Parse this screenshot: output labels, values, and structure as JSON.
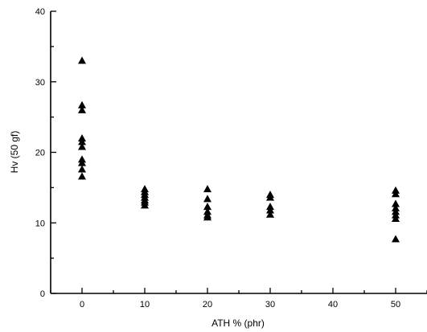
{
  "chart_data": {
    "type": "scatter",
    "title": "",
    "xlabel": "ATH % (phr)",
    "ylabel": "Hv (50 gf)",
    "xlim": [
      -5,
      55
    ],
    "ylim": [
      0,
      40
    ],
    "x_ticks": [
      0,
      10,
      20,
      30,
      40,
      50
    ],
    "y_ticks": [
      0,
      10,
      20,
      30,
      40
    ],
    "x_tick_labels": [
      "0",
      "10",
      "20",
      "30",
      "40",
      "50"
    ],
    "y_tick_labels": [
      "0",
      "10",
      "20",
      "30",
      "40"
    ],
    "marker": "triangle-up",
    "grid": false,
    "legend": "none",
    "points": [
      {
        "x": 0,
        "y": 33.0
      },
      {
        "x": 0,
        "y": 26.7
      },
      {
        "x": 0,
        "y": 26.0
      },
      {
        "x": 0,
        "y": 22.0
      },
      {
        "x": 0,
        "y": 21.5
      },
      {
        "x": 0,
        "y": 20.8
      },
      {
        "x": 0,
        "y": 19.0
      },
      {
        "x": 0,
        "y": 18.5
      },
      {
        "x": 0,
        "y": 17.6
      },
      {
        "x": 0,
        "y": 16.6
      },
      {
        "x": 10,
        "y": 14.8
      },
      {
        "x": 10,
        "y": 14.4
      },
      {
        "x": 10,
        "y": 14.0
      },
      {
        "x": 10,
        "y": 13.6
      },
      {
        "x": 10,
        "y": 13.2
      },
      {
        "x": 10,
        "y": 12.9
      },
      {
        "x": 10,
        "y": 12.5
      },
      {
        "x": 20,
        "y": 14.8
      },
      {
        "x": 20,
        "y": 13.4
      },
      {
        "x": 20,
        "y": 12.3
      },
      {
        "x": 20,
        "y": 11.6
      },
      {
        "x": 20,
        "y": 11.1
      },
      {
        "x": 20,
        "y": 10.8
      },
      {
        "x": 30,
        "y": 14.0
      },
      {
        "x": 30,
        "y": 13.6
      },
      {
        "x": 30,
        "y": 12.3
      },
      {
        "x": 30,
        "y": 11.8
      },
      {
        "x": 30,
        "y": 11.2
      },
      {
        "x": 50,
        "y": 14.6
      },
      {
        "x": 50,
        "y": 14.1
      },
      {
        "x": 50,
        "y": 12.7
      },
      {
        "x": 50,
        "y": 12.1
      },
      {
        "x": 50,
        "y": 11.6
      },
      {
        "x": 50,
        "y": 11.1
      },
      {
        "x": 50,
        "y": 10.6
      },
      {
        "x": 50,
        "y": 7.7
      }
    ]
  }
}
